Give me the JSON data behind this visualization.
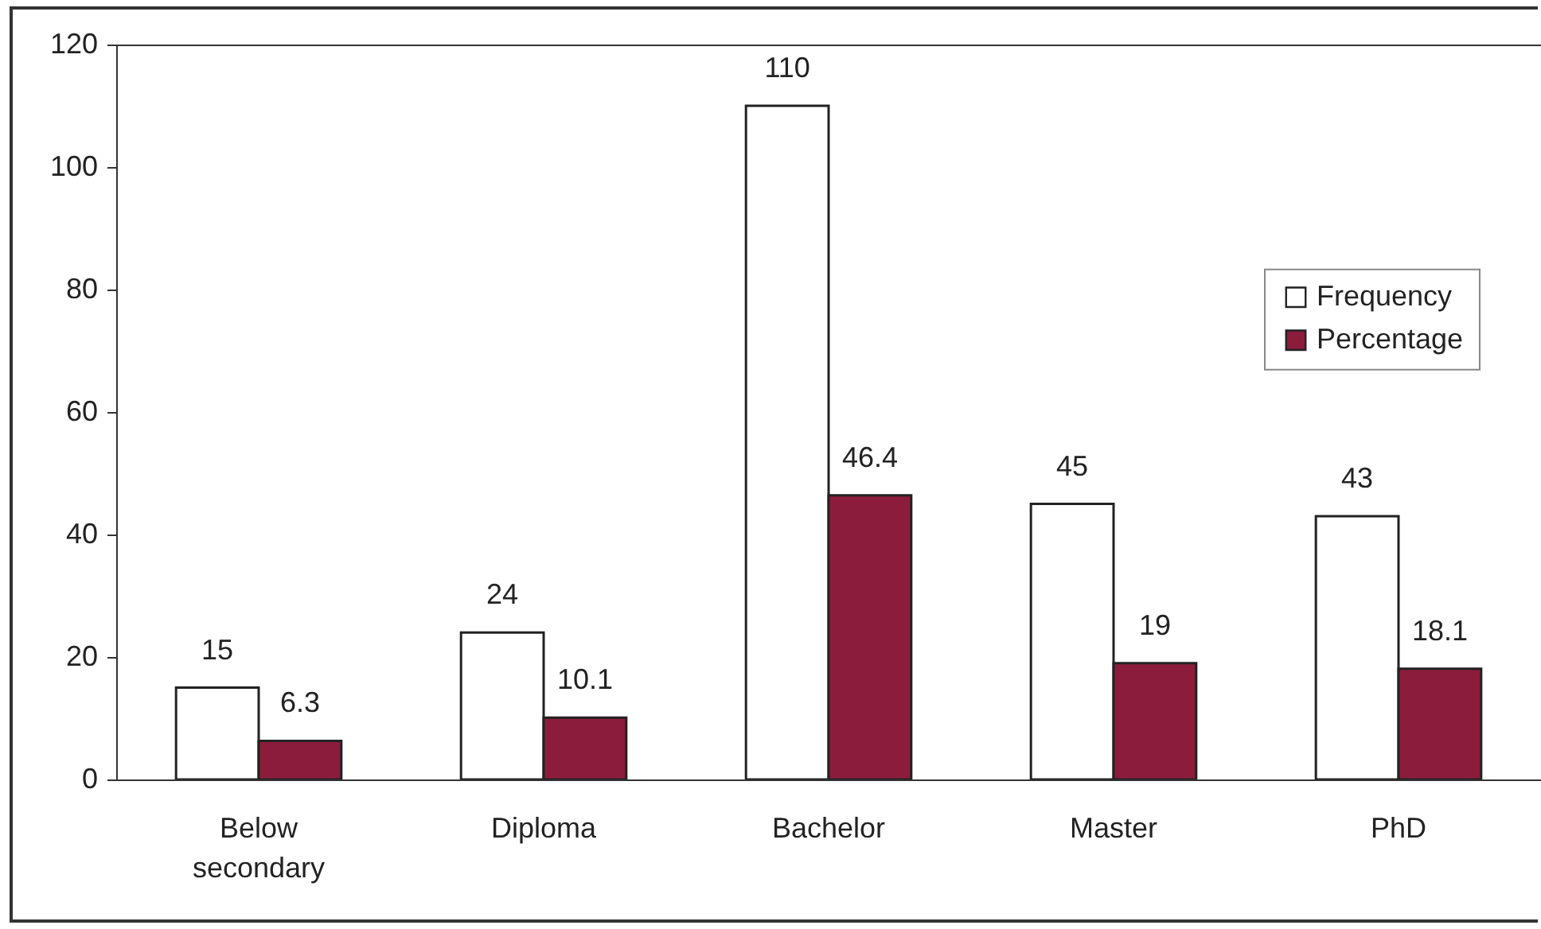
{
  "chart_data": {
    "type": "bar",
    "categories": [
      "Below secondary",
      "Diploma",
      "Bachelor",
      "Master",
      "PhD"
    ],
    "series": [
      {
        "name": "Frequency",
        "color": "#ffffff",
        "values": [
          15,
          24,
          110,
          45,
          43
        ]
      },
      {
        "name": "Percentage",
        "color": "#8c1c3c",
        "values": [
          6.3,
          10.1,
          46.4,
          19,
          18.1
        ]
      }
    ],
    "ylim": [
      0,
      120
    ],
    "yticks": [
      0,
      20,
      40,
      60,
      80,
      100,
      120
    ],
    "data_labels": true,
    "legend": "right"
  }
}
